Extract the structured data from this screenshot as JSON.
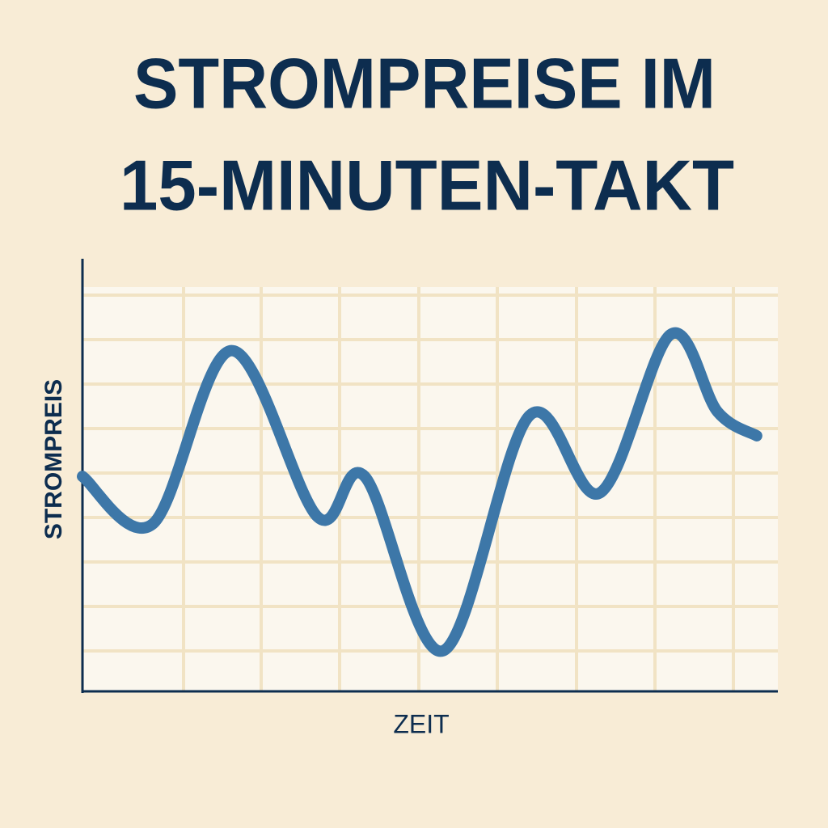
{
  "chart_data": {
    "type": "line",
    "title": [
      "STROMPREISE IM",
      "15-MINUTEN-TAKT"
    ],
    "x_label": "ZEIT",
    "y_label": "STROMPREIS",
    "x": [
      0,
      0.9,
      1.9,
      3.0,
      3.6,
      4.6,
      5.7,
      6.6,
      7.5,
      8.1,
      8.6
    ],
    "series": [
      {
        "color": "#3d77a8",
        "values": [
          4.82,
          3.76,
          7.64,
          3.91,
          4.82,
          0.91,
          6.18,
          4.45,
          8.0,
          6.27,
          5.73
        ]
      }
    ],
    "xlim": [
      0,
      8.87
    ],
    "ylim": [
      0,
      9.7
    ]
  }
}
